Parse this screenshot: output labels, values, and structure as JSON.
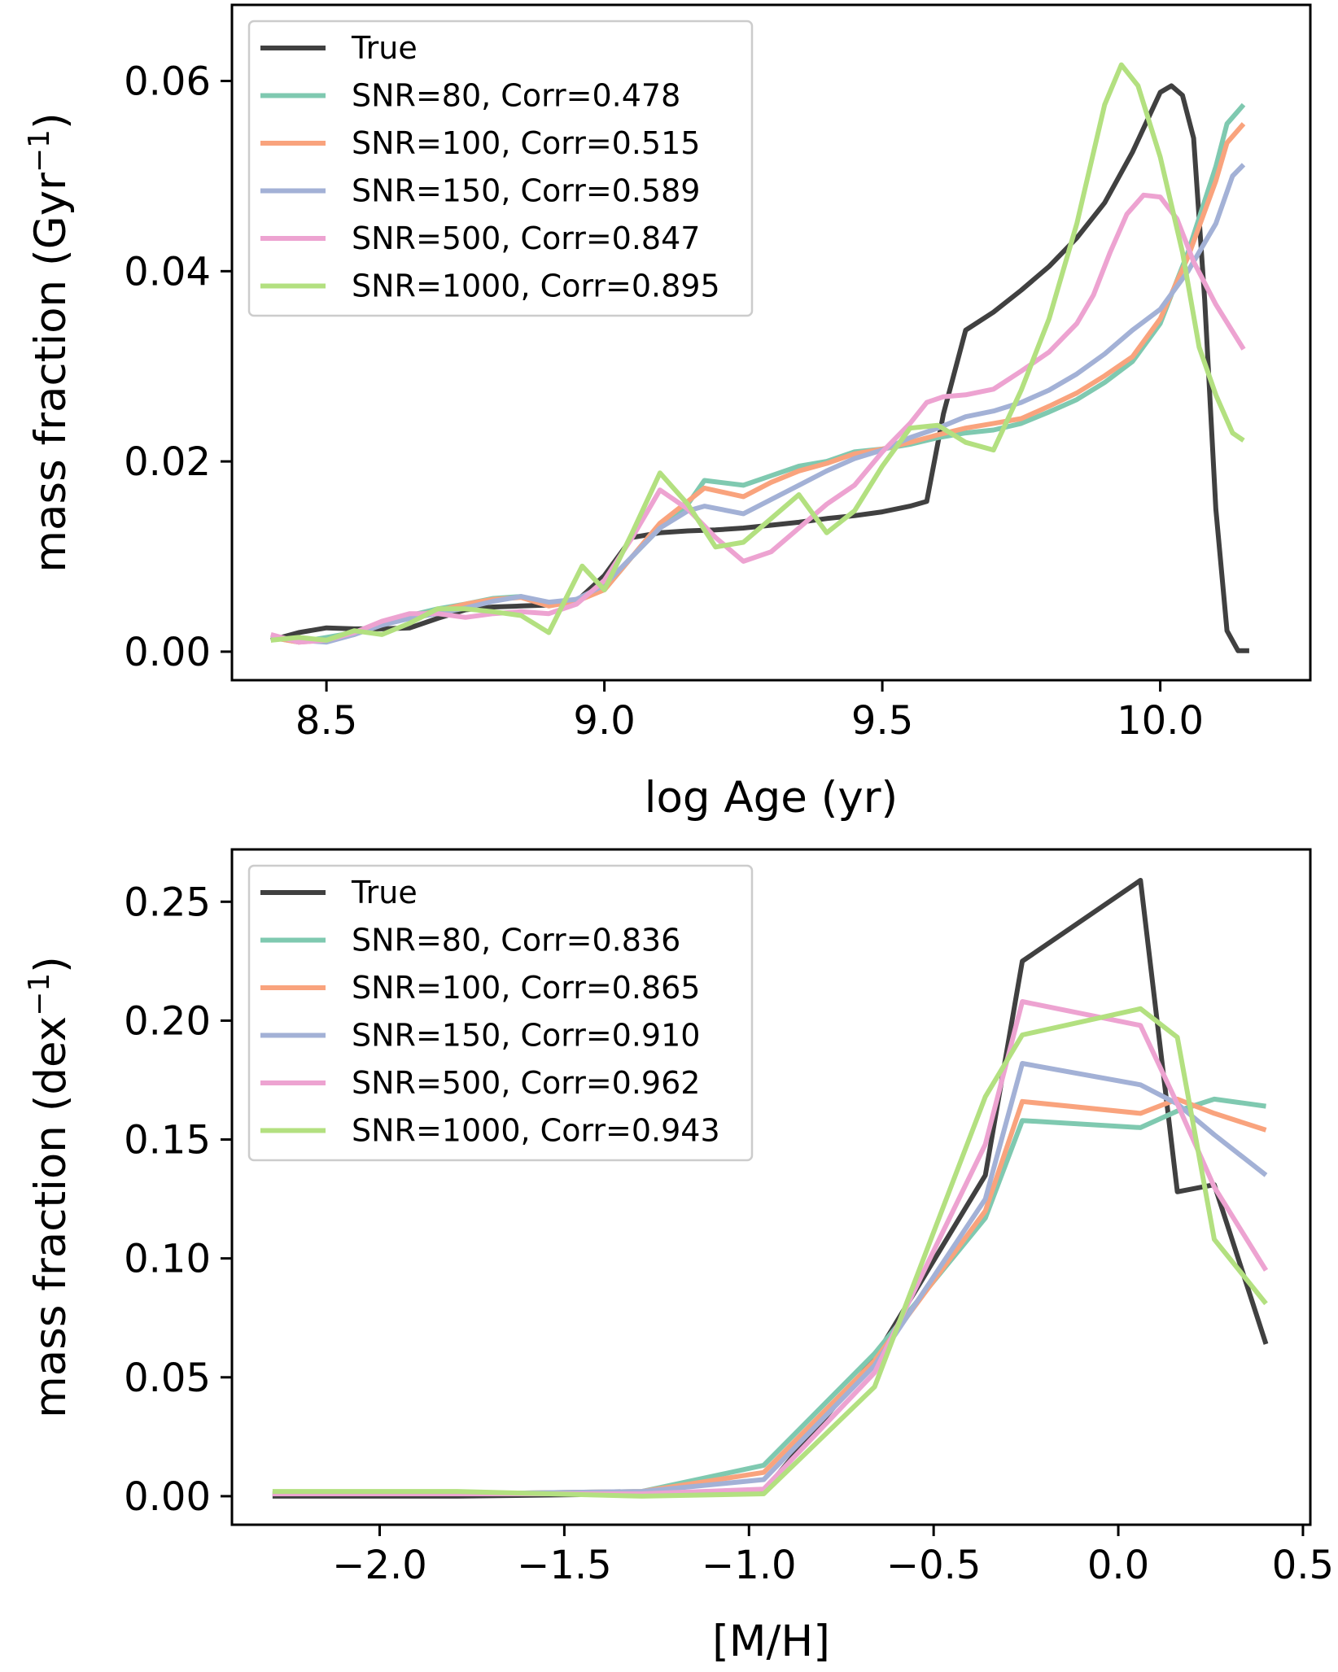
{
  "chart_data": [
    {
      "type": "line",
      "xlabel": "log Age (yr)",
      "ylabel": "mass fraction (Gyr",
      "ylabel_sup": "−1",
      "ylabel_close": ")",
      "xlim": [
        8.33,
        10.27
      ],
      "ylim": [
        -0.003,
        0.068
      ],
      "xticks": [
        8.5,
        9.0,
        9.5,
        10.0
      ],
      "xtick_labels": [
        "8.5",
        "9.0",
        "9.5",
        "10.0"
      ],
      "yticks": [
        0.0,
        0.02,
        0.04,
        0.06
      ],
      "ytick_labels": [
        "0.00",
        "0.02",
        "0.04",
        "0.06"
      ],
      "legend_position": "upper-left",
      "series": [
        {
          "name": "True",
          "color": "#404040",
          "x": [
            8.4,
            8.45,
            8.5,
            8.55,
            8.6,
            8.65,
            8.7,
            8.75,
            8.8,
            8.85,
            8.9,
            8.95,
            9.0,
            9.05,
            9.1,
            9.15,
            9.2,
            9.25,
            9.3,
            9.35,
            9.4,
            9.45,
            9.5,
            9.55,
            9.58,
            9.61,
            9.65,
            9.7,
            9.75,
            9.8,
            9.85,
            9.9,
            9.95,
            10.0,
            10.02,
            10.04,
            10.06,
            10.08,
            10.1,
            10.12,
            10.14,
            10.16
          ],
          "y": [
            0.0012,
            0.002,
            0.0025,
            0.0024,
            0.0024,
            0.0025,
            0.0035,
            0.0044,
            0.0047,
            0.0048,
            0.0049,
            0.0053,
            0.008,
            0.012,
            0.0125,
            0.0127,
            0.0128,
            0.013,
            0.0133,
            0.0136,
            0.014,
            0.0143,
            0.0147,
            0.0153,
            0.0158,
            0.025,
            0.0338,
            0.0357,
            0.038,
            0.0405,
            0.0435,
            0.0472,
            0.0525,
            0.0588,
            0.0595,
            0.0585,
            0.054,
            0.037,
            0.015,
            0.0022,
            0.0001,
            0.0001
          ]
        },
        {
          "name": "SNR=80, Corr=0.478",
          "color": "#7fc9b0",
          "x": [
            8.4,
            8.45,
            8.5,
            8.55,
            8.6,
            8.65,
            8.7,
            8.75,
            8.8,
            8.85,
            8.9,
            8.95,
            9.0,
            9.05,
            9.1,
            9.15,
            9.18,
            9.25,
            9.3,
            9.35,
            9.4,
            9.45,
            9.5,
            9.55,
            9.6,
            9.65,
            9.7,
            9.75,
            9.8,
            9.85,
            9.9,
            9.95,
            10.0,
            10.05,
            10.1,
            10.12,
            10.15
          ],
          "y": [
            0.0015,
            0.001,
            0.0015,
            0.002,
            0.003,
            0.0038,
            0.0045,
            0.005,
            0.0056,
            0.0058,
            0.005,
            0.0055,
            0.0065,
            0.01,
            0.013,
            0.0155,
            0.018,
            0.0175,
            0.0185,
            0.0195,
            0.02,
            0.021,
            0.0213,
            0.0218,
            0.0225,
            0.023,
            0.0233,
            0.024,
            0.0252,
            0.0265,
            0.0283,
            0.0305,
            0.0345,
            0.042,
            0.051,
            0.0555,
            0.0575
          ]
        },
        {
          "name": "SNR=100, Corr=0.515",
          "color": "#f9a37d",
          "x": [
            8.4,
            8.45,
            8.5,
            8.55,
            8.6,
            8.65,
            8.7,
            8.75,
            8.8,
            8.85,
            8.9,
            8.95,
            9.0,
            9.05,
            9.1,
            9.15,
            9.18,
            9.25,
            9.3,
            9.35,
            9.4,
            9.45,
            9.5,
            9.55,
            9.6,
            9.65,
            9.7,
            9.75,
            9.8,
            9.85,
            9.9,
            9.95,
            10.0,
            10.05,
            10.1,
            10.12,
            10.15
          ],
          "y": [
            0.0015,
            0.001,
            0.0012,
            0.0018,
            0.003,
            0.0036,
            0.0043,
            0.005,
            0.0055,
            0.0057,
            0.0048,
            0.0053,
            0.0065,
            0.01,
            0.0135,
            0.0158,
            0.0172,
            0.0163,
            0.0178,
            0.019,
            0.0198,
            0.0208,
            0.0213,
            0.022,
            0.0228,
            0.0235,
            0.024,
            0.0245,
            0.0258,
            0.0272,
            0.029,
            0.031,
            0.035,
            0.0415,
            0.0495,
            0.0535,
            0.0555
          ]
        },
        {
          "name": "SNR=150, Corr=0.589",
          "color": "#a3b1d6",
          "x": [
            8.4,
            8.45,
            8.5,
            8.55,
            8.6,
            8.65,
            8.7,
            8.75,
            8.8,
            8.85,
            8.9,
            8.95,
            9.0,
            9.05,
            9.1,
            9.15,
            9.18,
            9.25,
            9.3,
            9.35,
            9.4,
            9.45,
            9.5,
            9.55,
            9.6,
            9.65,
            9.7,
            9.75,
            9.8,
            9.85,
            9.9,
            9.95,
            10.0,
            10.05,
            10.1,
            10.13,
            10.15
          ],
          "y": [
            0.0015,
            0.0012,
            0.001,
            0.0018,
            0.0028,
            0.0035,
            0.004,
            0.0046,
            0.0053,
            0.0058,
            0.0052,
            0.0055,
            0.007,
            0.01,
            0.013,
            0.0148,
            0.0153,
            0.0145,
            0.016,
            0.0175,
            0.019,
            0.0203,
            0.0212,
            0.0225,
            0.0235,
            0.0247,
            0.0253,
            0.0262,
            0.0275,
            0.0292,
            0.0313,
            0.0338,
            0.036,
            0.04,
            0.045,
            0.05,
            0.0512
          ]
        },
        {
          "name": "SNR=500, Corr=0.847",
          "color": "#eda3d1",
          "x": [
            8.4,
            8.45,
            8.5,
            8.55,
            8.6,
            8.65,
            8.7,
            8.75,
            8.8,
            8.85,
            8.9,
            8.95,
            9.0,
            9.05,
            9.1,
            9.15,
            9.2,
            9.25,
            9.3,
            9.35,
            9.4,
            9.45,
            9.5,
            9.55,
            9.58,
            9.61,
            9.65,
            9.7,
            9.75,
            9.8,
            9.85,
            9.88,
            9.91,
            9.94,
            9.97,
            10.0,
            10.03,
            10.06,
            10.1,
            10.15
          ],
          "y": [
            0.0018,
            0.001,
            0.0012,
            0.002,
            0.0032,
            0.004,
            0.004,
            0.0036,
            0.004,
            0.0042,
            0.004,
            0.005,
            0.0075,
            0.012,
            0.017,
            0.015,
            0.012,
            0.0095,
            0.0105,
            0.013,
            0.0155,
            0.0175,
            0.021,
            0.024,
            0.0262,
            0.0268,
            0.027,
            0.0276,
            0.0295,
            0.0315,
            0.0345,
            0.0375,
            0.042,
            0.046,
            0.048,
            0.0478,
            0.0455,
            0.041,
            0.0365,
            0.0318
          ]
        },
        {
          "name": "SNR=1000, Corr=0.895",
          "color": "#b3e080",
          "x": [
            8.4,
            8.45,
            8.5,
            8.55,
            8.6,
            8.65,
            8.7,
            8.75,
            8.8,
            8.85,
            8.9,
            8.93,
            8.96,
            9.0,
            9.05,
            9.1,
            9.15,
            9.2,
            9.25,
            9.3,
            9.35,
            9.4,
            9.45,
            9.5,
            9.55,
            9.6,
            9.65,
            9.7,
            9.75,
            9.8,
            9.85,
            9.9,
            9.93,
            9.96,
            10.0,
            10.04,
            10.07,
            10.1,
            10.13,
            10.15
          ],
          "y": [
            0.0012,
            0.0015,
            0.0012,
            0.0022,
            0.0018,
            0.003,
            0.0045,
            0.0045,
            0.0042,
            0.0038,
            0.002,
            0.0055,
            0.009,
            0.0065,
            0.0125,
            0.0188,
            0.0155,
            0.011,
            0.0115,
            0.014,
            0.0165,
            0.0125,
            0.0148,
            0.0195,
            0.0235,
            0.0238,
            0.022,
            0.0212,
            0.0275,
            0.035,
            0.045,
            0.0575,
            0.0617,
            0.0595,
            0.052,
            0.042,
            0.032,
            0.027,
            0.023,
            0.0222
          ]
        }
      ]
    },
    {
      "type": "line",
      "xlabel": "[M/H]",
      "ylabel": "mass fraction (dex",
      "ylabel_sup": "−1",
      "ylabel_close": ")",
      "xlim": [
        -2.4,
        0.52
      ],
      "ylim": [
        -0.012,
        0.272
      ],
      "xticks": [
        -2.0,
        -1.5,
        -1.0,
        -0.5,
        0.0,
        0.5
      ],
      "xtick_labels": [
        "−2.0",
        "−1.5",
        "−1.0",
        "−0.5",
        "0.0",
        "0.5"
      ],
      "yticks": [
        0.0,
        0.05,
        0.1,
        0.15,
        0.2,
        0.25
      ],
      "ytick_labels": [
        "0.00",
        "0.05",
        "0.10",
        "0.15",
        "0.20",
        "0.25"
      ],
      "legend_position": "upper-left",
      "series": [
        {
          "name": "True",
          "color": "#404040",
          "x": [
            -2.29,
            -1.79,
            -1.29,
            -0.96,
            -0.66,
            -0.36,
            -0.26,
            0.06,
            0.16,
            0.26,
            0.4
          ],
          "y": [
            0.0,
            0.0,
            0.001,
            0.002,
            0.058,
            0.135,
            0.225,
            0.259,
            0.128,
            0.131,
            0.064
          ]
        },
        {
          "name": "SNR=80, Corr=0.836",
          "color": "#7fc9b0",
          "x": [
            -2.29,
            -1.79,
            -1.29,
            -0.96,
            -0.66,
            -0.36,
            -0.26,
            0.06,
            0.16,
            0.26,
            0.4
          ],
          "y": [
            0.001,
            0.001,
            0.002,
            0.013,
            0.06,
            0.117,
            0.158,
            0.155,
            0.162,
            0.167,
            0.164
          ]
        },
        {
          "name": "SNR=100, Corr=0.865",
          "color": "#f9a37d",
          "x": [
            -2.29,
            -1.79,
            -1.29,
            -0.96,
            -0.66,
            -0.36,
            -0.26,
            0.06,
            0.16,
            0.26,
            0.4
          ],
          "y": [
            0.001,
            0.001,
            0.002,
            0.01,
            0.057,
            0.12,
            0.166,
            0.161,
            0.167,
            0.161,
            0.154
          ]
        },
        {
          "name": "SNR=150, Corr=0.910",
          "color": "#a3b1d6",
          "x": [
            -2.29,
            -1.79,
            -1.29,
            -0.96,
            -0.66,
            -0.36,
            -0.26,
            0.06,
            0.16,
            0.26,
            0.4
          ],
          "y": [
            0.001,
            0.001,
            0.002,
            0.007,
            0.055,
            0.125,
            0.182,
            0.173,
            0.165,
            0.152,
            0.135
          ]
        },
        {
          "name": "SNR=500, Corr=0.962",
          "color": "#eda3d1",
          "x": [
            -2.29,
            -1.79,
            -1.29,
            -0.96,
            -0.66,
            -0.36,
            -0.26,
            0.06,
            0.16,
            0.26,
            0.4
          ],
          "y": [
            0.001,
            0.001,
            0.001,
            0.003,
            0.052,
            0.148,
            0.208,
            0.198,
            0.165,
            0.13,
            0.095
          ]
        },
        {
          "name": "SNR=1000, Corr=0.943",
          "color": "#b3e080",
          "x": [
            -2.29,
            -1.79,
            -1.29,
            -0.96,
            -0.66,
            -0.36,
            -0.26,
            0.06,
            0.16,
            0.26,
            0.4
          ],
          "y": [
            0.002,
            0.002,
            0.0,
            0.001,
            0.046,
            0.168,
            0.194,
            0.205,
            0.193,
            0.108,
            0.081
          ]
        }
      ]
    }
  ]
}
